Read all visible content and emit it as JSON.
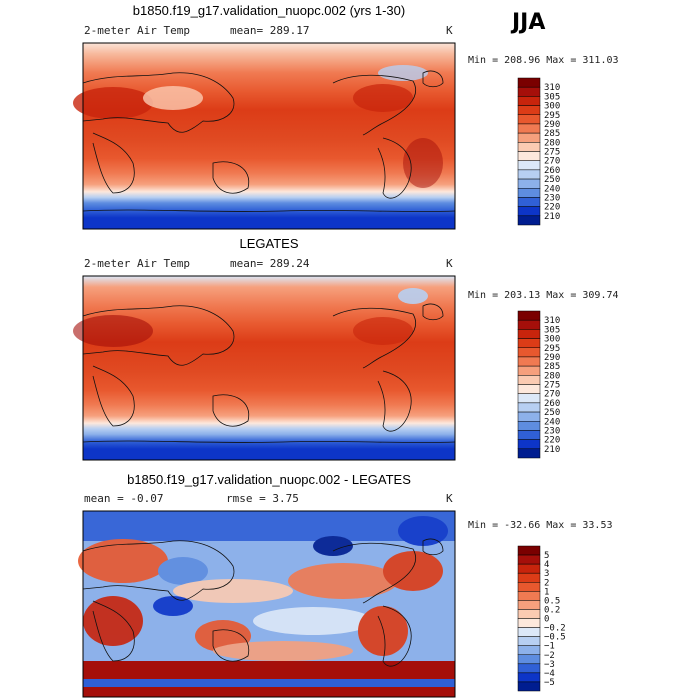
{
  "season": "JJA",
  "unit": "K",
  "panels": [
    {
      "title": "b1850.f19_g17.validation_nuopc.002 (yrs 1-30)",
      "variable": "2-meter Air Temp",
      "stat_text": "mean=  289.17",
      "unit": "K",
      "minmax": "Min = 208.96 Max = 311.03"
    },
    {
      "title": "LEGATES",
      "variable": "2-meter Air Temp",
      "stat_text": "mean= 289.24",
      "unit": "K",
      "minmax": "Min = 203.13 Max = 309.74"
    },
    {
      "title": "b1850.f19_g17.validation_nuopc.002 - LEGATES",
      "stat_text": "mean =   -0.07",
      "rmse_text": "rmse =    3.75",
      "unit": "K",
      "minmax": "Min = -32.66 Max =  33.53"
    }
  ],
  "chart_data": [
    {
      "type": "heatmap",
      "title": "b1850.f19_g17.validation_nuopc.002 (yrs 1-30)",
      "variable": "2-meter Air Temp",
      "units": "K",
      "mean": 289.17,
      "min": 208.96,
      "max": 311.03,
      "projection": "cylindrical equidistant, Pacific-centered",
      "colorbar": {
        "levels": [
          "310",
          "305",
          "300",
          "295",
          "290",
          "285",
          "280",
          "275",
          "270",
          "260",
          "250",
          "240",
          "230",
          "220",
          "210"
        ],
        "colors": [
          "#7a0000",
          "#a50f0a",
          "#c8240c",
          "#dc3c17",
          "#e8582e",
          "#f07a52",
          "#f6a07d",
          "#fbcbb2",
          "#fde8dc",
          "#dce8f8",
          "#b7cff2",
          "#8db1ea",
          "#5e8de0",
          "#3060d6",
          "#0d35c8",
          "#001d90"
        ]
      }
    },
    {
      "type": "heatmap",
      "title": "LEGATES",
      "variable": "2-meter Air Temp",
      "units": "K",
      "mean": 289.24,
      "min": 203.13,
      "max": 309.74,
      "projection": "cylindrical equidistant, Pacific-centered",
      "colorbar": {
        "levels": [
          "310",
          "305",
          "300",
          "295",
          "290",
          "285",
          "280",
          "275",
          "270",
          "260",
          "250",
          "240",
          "230",
          "220",
          "210"
        ],
        "colors": [
          "#7a0000",
          "#a50f0a",
          "#c8240c",
          "#dc3c17",
          "#e8582e",
          "#f07a52",
          "#f6a07d",
          "#fbcbb2",
          "#fde8dc",
          "#dce8f8",
          "#b7cff2",
          "#8db1ea",
          "#5e8de0",
          "#3060d6",
          "#0d35c8",
          "#001d90"
        ]
      }
    },
    {
      "type": "heatmap",
      "title": "b1850.f19_g17.validation_nuopc.002 - LEGATES",
      "units": "K",
      "mean": -0.07,
      "rmse": 3.75,
      "min": -32.66,
      "max": 33.53,
      "projection": "cylindrical equidistant, Pacific-centered",
      "colorbar": {
        "levels": [
          "5",
          "4",
          "3",
          "2",
          "1",
          "0.5",
          "0.2",
          "0",
          "−0.2",
          "−0.5",
          "−1",
          "−2",
          "−3",
          "−4",
          "−5"
        ],
        "colors": [
          "#7a0000",
          "#a50f0a",
          "#c8240c",
          "#dc3c17",
          "#e8582e",
          "#f07a52",
          "#f6a07d",
          "#fbcbb2",
          "#fde8dc",
          "#dce8f8",
          "#b7cff2",
          "#8db1ea",
          "#5e8de0",
          "#3060d6",
          "#0d35c8",
          "#001d90"
        ]
      }
    }
  ]
}
